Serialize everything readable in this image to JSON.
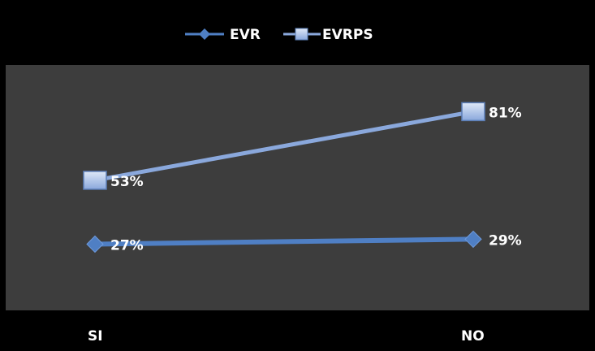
{
  "chart_data": {
    "type": "line",
    "categories": [
      "SI",
      "NO"
    ],
    "series": [
      {
        "name": "EVR",
        "values": [
          27,
          29
        ],
        "labels": [
          "27%",
          "29%"
        ],
        "color": "#4f7fc4",
        "marker": "diamond"
      },
      {
        "name": "EVRPS",
        "values": [
          53,
          81
        ],
        "labels": [
          "53%",
          "81%"
        ],
        "color": "#8aa8dc",
        "marker": "square"
      }
    ],
    "ylim": [
      0,
      100
    ],
    "grid": false,
    "legend": "top-center",
    "plot_background": "#3d3d3d",
    "figure_background": "#000000"
  }
}
